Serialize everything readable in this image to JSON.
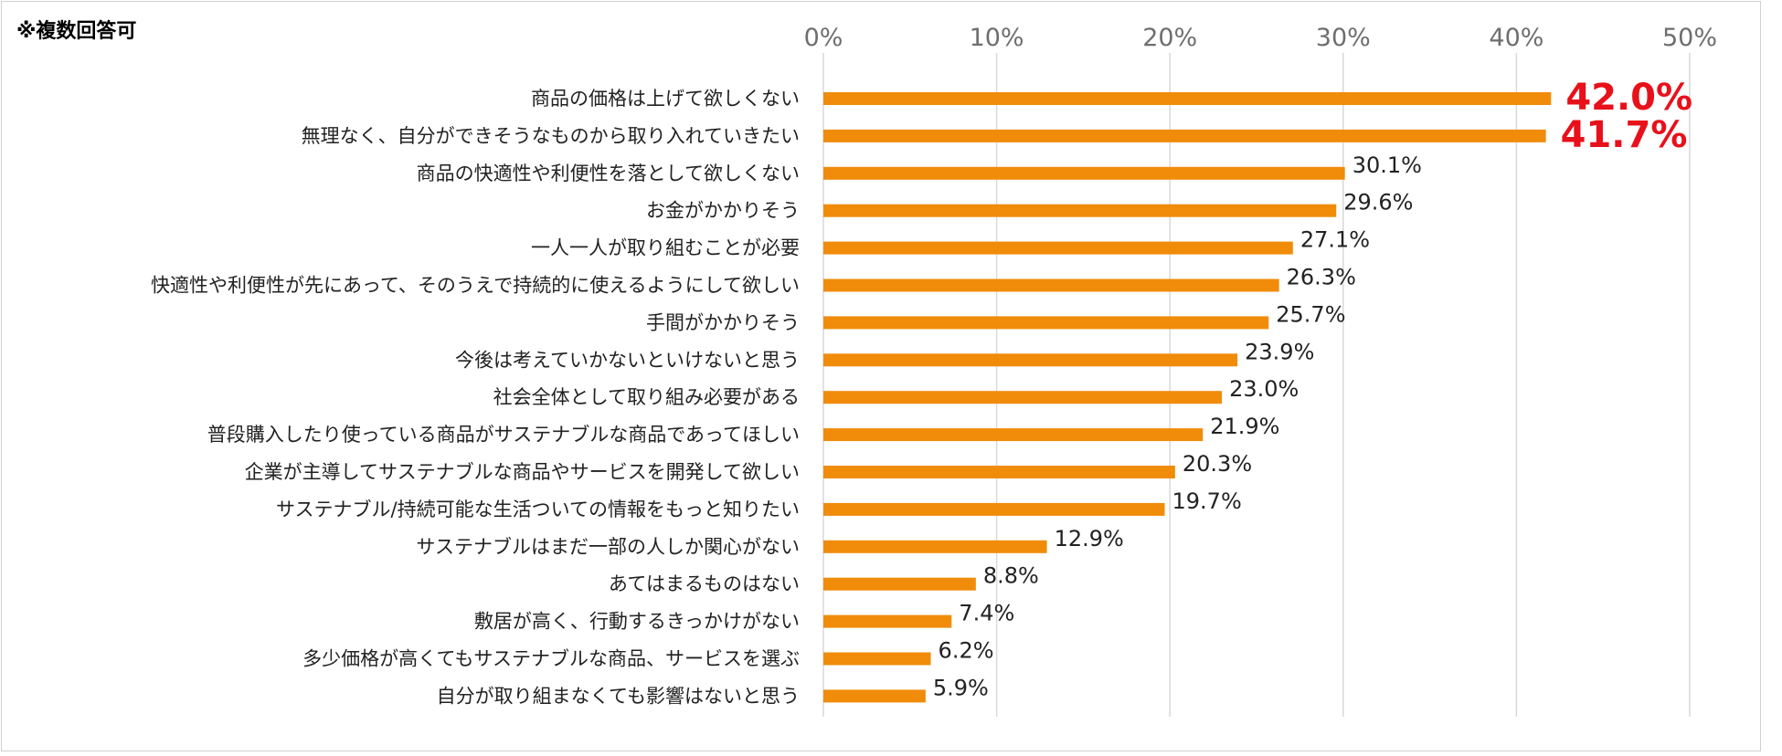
{
  "note": "※複数回答可",
  "colors": {
    "bar": "#F08C0A",
    "highlight": "#E8101A",
    "grid": "#D9D9D9"
  },
  "chart_data": {
    "type": "bar",
    "orientation": "horizontal",
    "title": "",
    "xlabel": "",
    "ylabel": "",
    "xlim": [
      0,
      50
    ],
    "grid": true,
    "ticks": [
      "0%",
      "10%",
      "20%",
      "30%",
      "40%",
      "50%"
    ],
    "categories": [
      "商品の価格は上げて欲しくない",
      "無理なく、自分ができそうなものから取り入れていきたい",
      "商品の快適性や利便性を落として欲しくない",
      "お金がかかりそう",
      "一人一人が取り組むことが必要",
      "快適性や利便性が先にあって、そのうえで持続的に使えるようにして欲しい",
      "手間がかかりそう",
      "今後は考えていかないといけないと思う",
      "社会全体として取り組み必要がある",
      "普段購入したり使っている商品がサステナブルな商品であってほしい",
      "企業が主導してサステナブルな商品やサービスを開発して欲しい",
      "サステナブル/持続可能な生活ついての情報をもっと知りたい",
      "サステナブルはまだ一部の人しか関心がない",
      "あてはまるものはない",
      "敷居が高く、行動するきっかけがない",
      "多少価格が高くてもサステナブルな商品、サービスを選ぶ",
      "自分が取り組まなくても影響はないと思う"
    ],
    "values": [
      42.0,
      41.7,
      30.1,
      29.6,
      27.1,
      26.3,
      25.7,
      23.9,
      23.0,
      21.9,
      20.3,
      19.7,
      12.9,
      8.8,
      7.4,
      6.2,
      5.9
    ],
    "labels": [
      "42.0%",
      "41.7%",
      "30.1%",
      "29.6%",
      "27.1%",
      "26.3%",
      "25.7%",
      "23.9%",
      "23.0%",
      "21.9%",
      "20.3%",
      "19.7%",
      "12.9%",
      "8.8%",
      "7.4%",
      "6.2%",
      "5.9%"
    ],
    "highlighted": [
      0,
      1
    ]
  }
}
